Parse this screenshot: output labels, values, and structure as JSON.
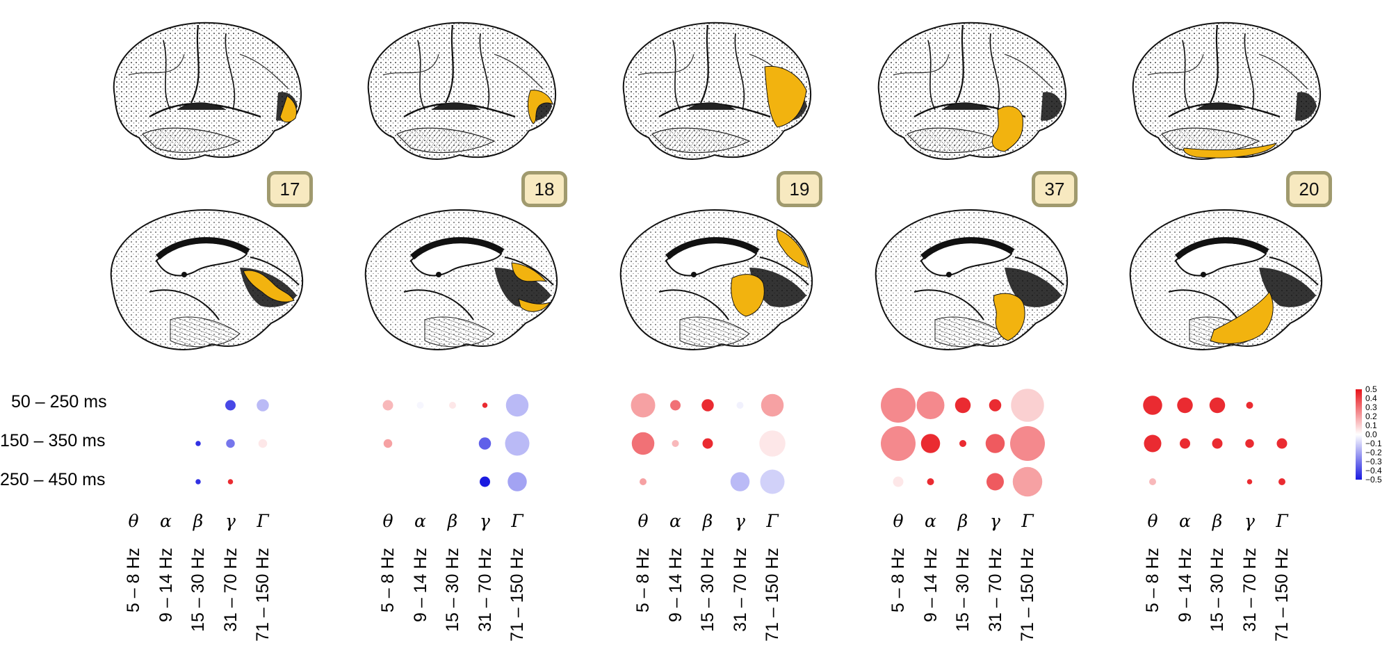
{
  "panels": [
    {
      "area": "17",
      "lateral_highlight": "occipital-pole",
      "medial_highlight": "calcarine"
    },
    {
      "area": "18",
      "lateral_highlight": "occipital-band",
      "medial_highlight": "calcarine-ring"
    },
    {
      "area": "19",
      "lateral_highlight": "parieto-occipital",
      "medial_highlight": "cuneus-precuneus"
    },
    {
      "area": "37",
      "lateral_highlight": "occipito-temporal",
      "medial_highlight": "fusiform"
    },
    {
      "area": "20",
      "lateral_highlight": "inferior-temporal",
      "medial_highlight": "inferior-temporal-medial"
    }
  ],
  "time_windows": [
    "50 – 250 ms",
    "150 – 350 ms",
    "250 – 450 ms"
  ],
  "bands": [
    {
      "symbol": "θ",
      "range": "5 – 8 Hz"
    },
    {
      "symbol": "α",
      "range": "9 – 14 Hz"
    },
    {
      "symbol": "β",
      "range": "15 – 30 Hz"
    },
    {
      "symbol": "γ",
      "range": "31 – 70 Hz"
    },
    {
      "symbol": "Γ",
      "range": "71 – 150 Hz"
    }
  ],
  "colorbar": {
    "ticks": [
      "0.5",
      "0.4",
      "0.3",
      "0.2",
      "0.1",
      "0.0",
      "−0.1",
      "−0.2",
      "−0.3",
      "−0.4",
      "−0.5"
    ],
    "min": -0.5,
    "max": 0.5,
    "colors": {
      "positive": "#e8131a",
      "neutral": "#ffffff",
      "negative": "#1a1ae0"
    }
  },
  "highlight_color": "#f2b30f",
  "chart_data": {
    "type": "dot-matrix",
    "note_value_meaning": "color = signed effect (−0.5 to 0.5), size = magnitude",
    "panels": [
      {
        "area": "17",
        "values": [
          [
            null,
            null,
            null,
            -0.4,
            -0.15
          ],
          [
            null,
            null,
            -0.45,
            -0.3,
            0.05
          ],
          [
            null,
            null,
            -0.45,
            0.45,
            null
          ]
        ],
        "sizes": [
          [
            0,
            0,
            0,
            0.3,
            0.35
          ],
          [
            0,
            0,
            0.15,
            0.25,
            0.25
          ],
          [
            0,
            0,
            0.15,
            0.15,
            0
          ]
        ]
      },
      {
        "area": "18",
        "values": [
          [
            0.15,
            -0.02,
            0.05,
            0.45,
            -0.15
          ],
          [
            0.2,
            null,
            null,
            -0.35,
            -0.15
          ],
          [
            null,
            null,
            null,
            -0.5,
            -0.2
          ]
        ],
        "sizes": [
          [
            0.3,
            0.2,
            0.2,
            0.15,
            0.65
          ],
          [
            0.25,
            0,
            0,
            0.35,
            0.7
          ],
          [
            0,
            0,
            0,
            0.3,
            0.55
          ]
        ]
      },
      {
        "area": "19",
        "values": [
          [
            0.2,
            0.3,
            0.45,
            -0.03,
            0.2
          ],
          [
            0.3,
            0.15,
            0.45,
            null,
            0.05
          ],
          [
            0.2,
            null,
            null,
            -0.15,
            -0.1
          ]
        ],
        "sizes": [
          [
            0.7,
            0.3,
            0.35,
            0.2,
            0.65
          ],
          [
            0.65,
            0.2,
            0.3,
            0,
            0.75
          ],
          [
            0.2,
            0,
            0,
            0.55,
            0.7
          ]
        ]
      },
      {
        "area": "37",
        "values": [
          [
            0.25,
            0.25,
            0.45,
            0.45,
            0.1
          ],
          [
            0.25,
            0.45,
            0.45,
            0.35,
            0.25
          ],
          [
            0.05,
            0.45,
            null,
            0.35,
            0.2
          ]
        ],
        "sizes": [
          [
            1.0,
            0.8,
            0.45,
            0.35,
            0.95
          ],
          [
            1.0,
            0.55,
            0.2,
            0.55,
            1.0
          ],
          [
            0.3,
            0.2,
            0,
            0.5,
            0.85
          ]
        ]
      },
      {
        "area": "20",
        "values": [
          [
            0.45,
            0.45,
            0.45,
            0.45,
            null
          ],
          [
            0.45,
            0.45,
            0.45,
            0.45,
            0.45
          ],
          [
            0.15,
            null,
            null,
            0.45,
            0.45
          ]
        ],
        "sizes": [
          [
            0.55,
            0.45,
            0.45,
            0.2,
            0
          ],
          [
            0.5,
            0.3,
            0.3,
            0.25,
            0.3
          ],
          [
            0.2,
            0,
            0,
            0.15,
            0.2
          ]
        ]
      }
    ]
  }
}
